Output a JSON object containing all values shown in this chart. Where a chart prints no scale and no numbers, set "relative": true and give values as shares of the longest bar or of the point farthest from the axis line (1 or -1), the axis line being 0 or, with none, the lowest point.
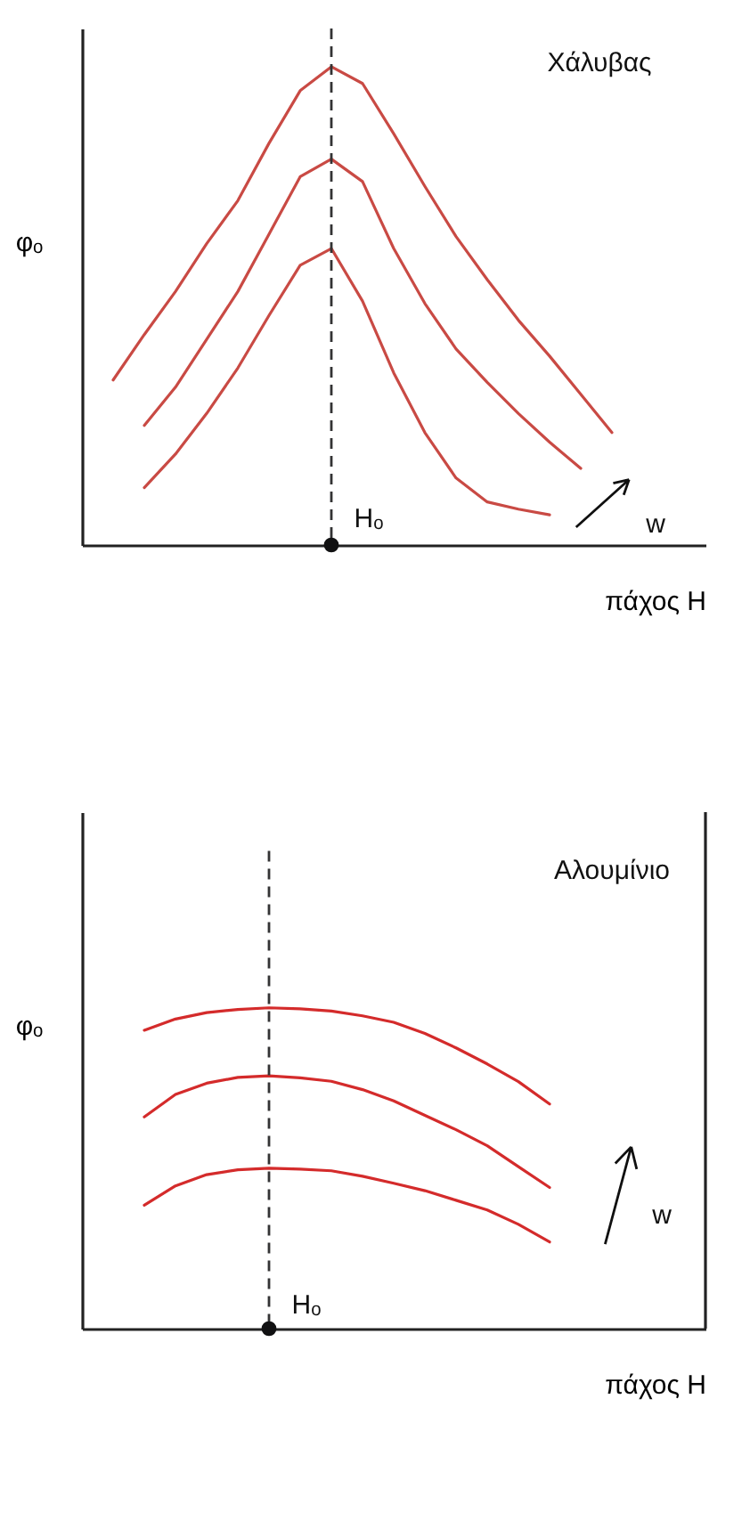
{
  "chart_data": [
    {
      "type": "line",
      "relative": true,
      "marker": "none",
      "line_style": "solid",
      "xlabel": "πάχος Η",
      "ylabel": "φₒ",
      "categories": [
        null,
        null,
        null,
        null,
        null,
        null,
        null,
        null,
        null,
        null,
        null,
        null,
        null,
        null,
        null,
        null,
        null,
        null,
        null
      ],
      "annotations": [
        "Χάλυβας",
        "w",
        "Hₒ"
      ],
      "series": [
        {
          "color": "#c94a44",
          "values": [
            0.345,
            0.44,
            0.53,
            0.63,
            0.72,
            0.84,
            0.95,
            1.0,
            0.965,
            0.86,
            0.75,
            0.645,
            0.555,
            0.47,
            0.395,
            0.315,
            0.235,
            null,
            null
          ]
        },
        {
          "color": "#c94a44",
          "values": [
            null,
            0.25,
            0.33,
            0.43,
            0.53,
            0.65,
            0.77,
            0.807,
            0.76,
            0.62,
            0.505,
            0.41,
            0.34,
            0.275,
            0.215,
            0.16,
            null,
            null,
            null
          ]
        },
        {
          "color": "#c94a44",
          "values": [
            null,
            0.12,
            0.19,
            0.275,
            0.37,
            0.48,
            0.585,
            0.62,
            0.51,
            0.36,
            0.235,
            0.14,
            0.09,
            0.075,
            0.063,
            null,
            null,
            null,
            null
          ]
        }
      ]
    },
    {
      "type": "line",
      "relative": true,
      "marker": "none",
      "line_style": "solid",
      "xlabel": "πάχος Η",
      "ylabel": "φₒ",
      "categories": [
        null,
        null,
        null,
        null,
        null,
        null,
        null,
        null,
        null,
        null,
        null,
        null,
        null,
        null,
        null,
        null,
        null,
        null,
        null
      ],
      "annotations": [
        "Αλουμίνιο",
        "w",
        "Hₒ"
      ],
      "series": [
        {
          "color": "#d42b2b",
          "values": [
            null,
            0.93,
            0.965,
            0.985,
            0.995,
            1.0,
            0.997,
            0.99,
            0.975,
            0.955,
            0.92,
            0.875,
            0.825,
            0.77,
            0.7,
            null,
            null,
            null,
            null
          ]
        },
        {
          "color": "#d42b2b",
          "values": [
            null,
            0.66,
            0.73,
            0.765,
            0.783,
            0.788,
            0.782,
            0.771,
            0.745,
            0.71,
            0.665,
            0.62,
            0.57,
            0.505,
            0.44,
            null,
            null,
            null,
            null
          ]
        },
        {
          "color": "#d42b2b",
          "values": [
            null,
            0.385,
            0.445,
            0.48,
            0.495,
            0.5,
            0.497,
            0.492,
            0.475,
            0.453,
            0.43,
            0.4,
            0.37,
            0.325,
            0.27,
            null,
            null,
            null,
            null
          ]
        }
      ]
    }
  ]
}
